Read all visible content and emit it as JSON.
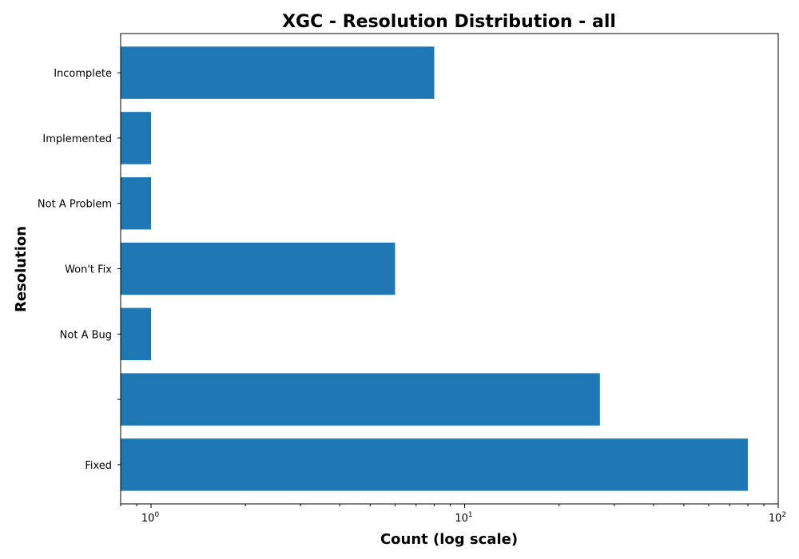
{
  "chart_data": {
    "type": "bar",
    "orientation": "horizontal",
    "title": "XGC - Resolution Distribution - all",
    "xlabel": "Count (log scale)",
    "ylabel": "Resolution",
    "x_scale": "log",
    "xlim": [
      0.8,
      100
    ],
    "x_ticks": [
      {
        "value": 1,
        "base": "10",
        "exp": "0"
      },
      {
        "value": 10,
        "base": "10",
        "exp": "1"
      },
      {
        "value": 100,
        "base": "10",
        "exp": "2"
      }
    ],
    "categories": [
      "Fixed",
      "",
      "Not A Bug",
      "Won't Fix",
      "Not A Problem",
      "Implemented",
      "Incomplete"
    ],
    "values": [
      80,
      27,
      1,
      6,
      1,
      1,
      8
    ],
    "bar_color": "#1f77b4",
    "grid": false
  }
}
